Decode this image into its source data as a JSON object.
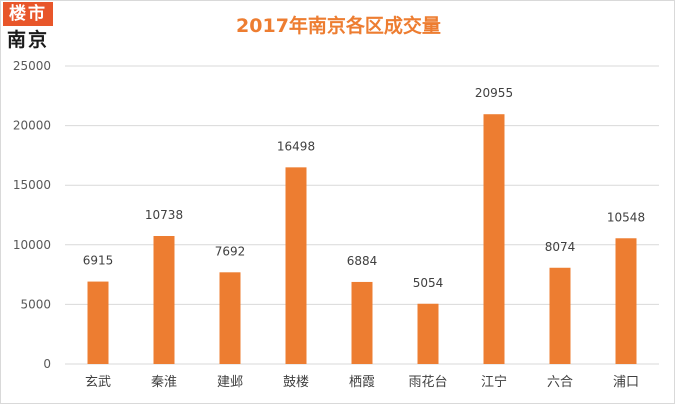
{
  "logo": {
    "top_text": "楼市",
    "bottom_text": "南京"
  },
  "colors": {
    "bar": "#ed7d31",
    "title": "#ed7d31",
    "grid": "#d9d9d9",
    "logo_bg": "#e8562a"
  },
  "chart_data": {
    "type": "bar",
    "title": "2017年南京各区成交量",
    "xlabel": "",
    "ylabel": "",
    "categories": [
      "玄武",
      "秦淮",
      "建邺",
      "鼓楼",
      "栖霞",
      "雨花台",
      "江宁",
      "六合",
      "浦口"
    ],
    "values": [
      6915,
      10738,
      7692,
      16498,
      6884,
      5054,
      20955,
      8074,
      10548
    ],
    "ylim": [
      0,
      25000
    ],
    "yticks": [
      0,
      5000,
      10000,
      15000,
      20000,
      25000
    ],
    "grid": true,
    "legend": "none",
    "data_labels": true
  }
}
